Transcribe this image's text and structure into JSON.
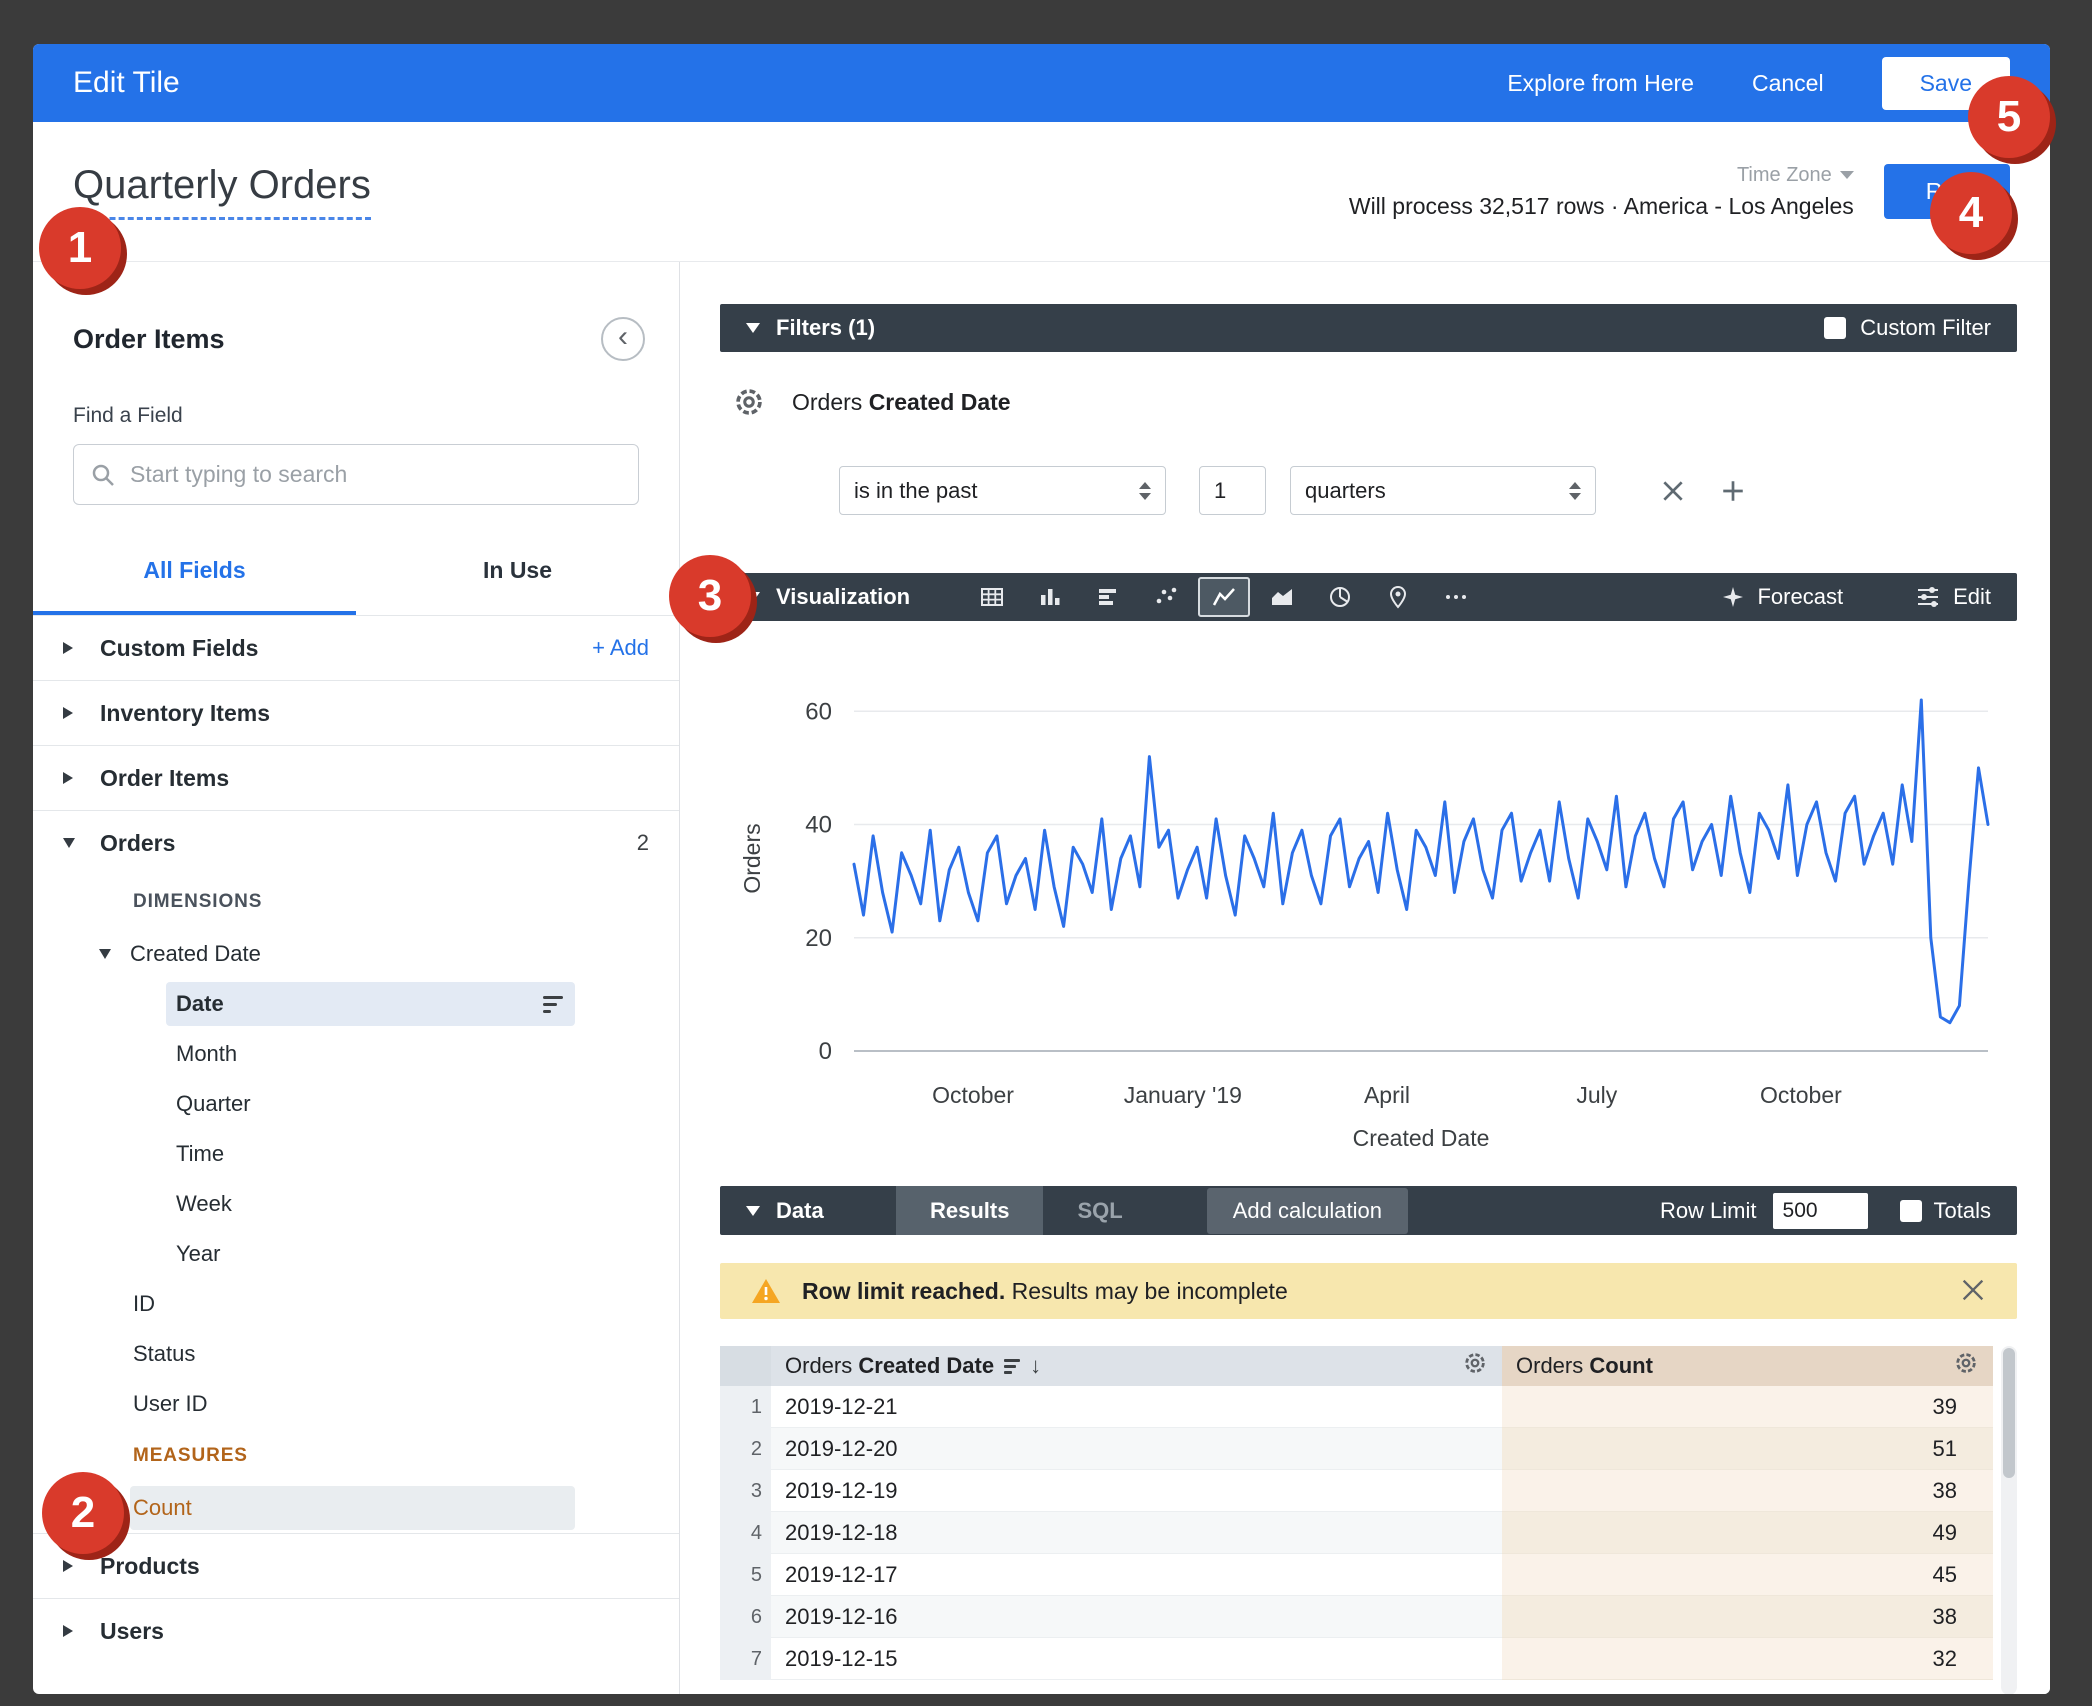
{
  "header": {
    "title": "Edit Tile",
    "explore_label": "Explore from Here",
    "cancel_label": "Cancel",
    "save_label": "Save"
  },
  "toolbar": {
    "tile_title": "Quarterly Orders",
    "timezone_label": "Time Zone",
    "process_info": "Will process 32,517 rows · America - Los Angeles",
    "run_label": "Run"
  },
  "sidebar": {
    "panel_title": "Order Items",
    "find_label": "Find a Field",
    "search_placeholder": "Start typing to search",
    "tabs": [
      {
        "label": "All Fields",
        "active": true
      },
      {
        "label": "In Use",
        "active": false
      }
    ],
    "items": [
      {
        "kind": "group",
        "label": "Custom Fields",
        "caret": "right",
        "action": "+ Add"
      },
      {
        "kind": "group",
        "label": "Inventory Items",
        "caret": "right",
        "divider_before": true
      },
      {
        "kind": "group",
        "label": "Order Items",
        "caret": "right",
        "divider_before": true
      },
      {
        "kind": "group",
        "label": "Orders",
        "caret": "down",
        "badge": "2",
        "divider_before": true
      },
      {
        "kind": "section",
        "label": "DIMENSIONS"
      },
      {
        "kind": "subgroup",
        "label": "Created Date",
        "caret": "down"
      },
      {
        "kind": "field",
        "label": "Date",
        "depth": 2,
        "selected": true,
        "bold": true,
        "filter": true
      },
      {
        "kind": "field",
        "label": "Month",
        "depth": 2
      },
      {
        "kind": "field",
        "label": "Quarter",
        "depth": 2
      },
      {
        "kind": "field",
        "label": "Time",
        "depth": 2
      },
      {
        "kind": "field",
        "label": "Week",
        "depth": 2
      },
      {
        "kind": "field",
        "label": "Year",
        "depth": 2
      },
      {
        "kind": "field",
        "label": "ID",
        "depth": 1
      },
      {
        "kind": "field",
        "label": "Status",
        "depth": 1
      },
      {
        "kind": "field",
        "label": "User ID",
        "depth": 1
      },
      {
        "kind": "section",
        "label": "MEASURES",
        "tone": "measure"
      },
      {
        "kind": "field",
        "label": "Count",
        "depth": 1,
        "measure": true,
        "selected": true
      },
      {
        "kind": "group",
        "label": "Products",
        "caret": "right",
        "divider_before": true
      },
      {
        "kind": "group",
        "label": "Users",
        "caret": "right",
        "divider_before": true
      }
    ]
  },
  "filters": {
    "bar_label": "Filters (1)",
    "custom_filter_label": "Custom Filter",
    "field_prefix": "Orders",
    "field_name": "Created Date",
    "condition": "is in the past",
    "amount": "1",
    "unit": "quarters"
  },
  "visualization": {
    "bar_label": "Visualization",
    "icons": [
      {
        "name": "table"
      },
      {
        "name": "column"
      },
      {
        "name": "bar"
      },
      {
        "name": "scatter"
      },
      {
        "name": "line",
        "selected": true
      },
      {
        "name": "area"
      },
      {
        "name": "pie"
      },
      {
        "name": "map"
      },
      {
        "name": "more"
      }
    ],
    "forecast_label": "Forecast",
    "edit_label": "Edit"
  },
  "chart_data": {
    "type": "line",
    "title": "",
    "ylabel": "Orders",
    "xlabel": "Created Date",
    "ylim": [
      0,
      68
    ],
    "y_ticks": [
      0,
      20,
      40,
      60
    ],
    "x_ticks": [
      {
        "label": "October",
        "pos": 0.105
      },
      {
        "label": "January '19",
        "pos": 0.29
      },
      {
        "label": "April",
        "pos": 0.47
      },
      {
        "label": "July",
        "pos": 0.655
      },
      {
        "label": "October",
        "pos": 0.835
      }
    ],
    "grid": true,
    "legend": "none",
    "line_color": "#2b6fe8",
    "values": [
      33,
      24,
      38,
      28,
      21,
      35,
      31,
      26,
      39,
      23,
      32,
      36,
      28,
      23,
      35,
      38,
      26,
      31,
      34,
      25,
      39,
      29,
      22,
      36,
      33,
      28,
      41,
      25,
      34,
      38,
      29,
      52,
      36,
      39,
      27,
      32,
      36,
      27,
      41,
      31,
      24,
      38,
      34,
      29,
      42,
      26,
      35,
      39,
      31,
      26,
      38,
      41,
      29,
      34,
      37,
      28,
      42,
      32,
      25,
      39,
      36,
      31,
      44,
      28,
      37,
      41,
      32,
      27,
      39,
      42,
      30,
      35,
      39,
      30,
      44,
      34,
      27,
      41,
      37,
      32,
      45,
      29,
      38,
      42,
      34,
      29,
      41,
      44,
      32,
      37,
      40,
      31,
      45,
      35,
      28,
      42,
      39,
      34,
      47,
      31,
      40,
      44,
      35,
      30,
      42,
      45,
      33,
      38,
      42,
      33,
      47,
      37,
      62,
      20,
      6,
      5,
      8,
      30,
      50,
      40
    ]
  },
  "data_section": {
    "bar_label": "Data",
    "tabs": [
      {
        "label": "Results",
        "active": true
      },
      {
        "label": "SQL",
        "active": false
      }
    ],
    "add_calculation_label": "Add calculation",
    "row_limit_label": "Row Limit",
    "row_limit_value": "500",
    "totals_label": "Totals",
    "warning_bold": "Row limit reached.",
    "warning_text": " Results may be incomplete",
    "table": {
      "col_date_prefix": "Orders",
      "col_date": "Created Date",
      "col_count_prefix": "Orders",
      "col_count": "Count",
      "rows": [
        {
          "n": "1",
          "date": "2019-12-21",
          "count": "39"
        },
        {
          "n": "2",
          "date": "2019-12-20",
          "count": "51"
        },
        {
          "n": "3",
          "date": "2019-12-19",
          "count": "38"
        },
        {
          "n": "4",
          "date": "2019-12-18",
          "count": "49"
        },
        {
          "n": "5",
          "date": "2019-12-17",
          "count": "45"
        },
        {
          "n": "6",
          "date": "2019-12-16",
          "count": "38"
        },
        {
          "n": "7",
          "date": "2019-12-15",
          "count": "32"
        }
      ]
    }
  },
  "callouts": [
    "1",
    "2",
    "3",
    "4",
    "5"
  ]
}
